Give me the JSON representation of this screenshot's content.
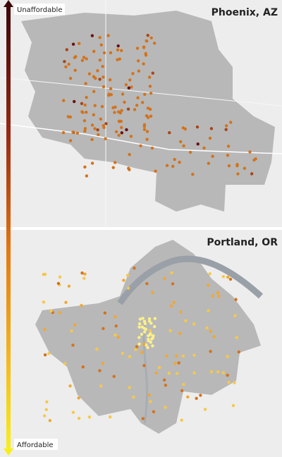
{
  "legend": {
    "top_label": "Unaffordable",
    "bottom_label": "Affordable"
  },
  "maps": [
    {
      "title": "Phoenix, AZ"
    },
    {
      "title": "Portland, OR"
    }
  ]
}
